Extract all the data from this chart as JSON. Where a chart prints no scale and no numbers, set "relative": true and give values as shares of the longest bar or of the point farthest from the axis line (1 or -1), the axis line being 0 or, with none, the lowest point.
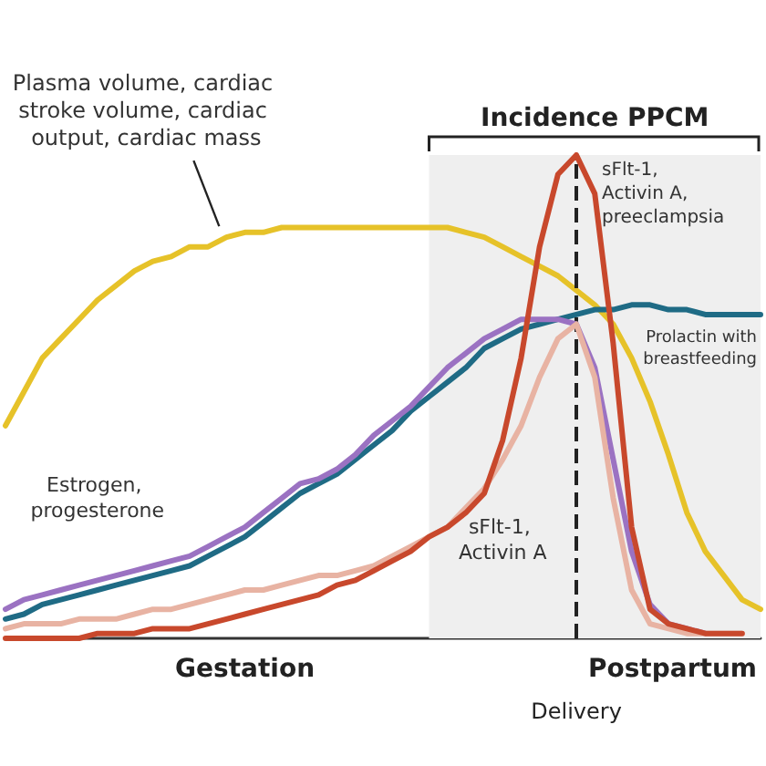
{
  "chart_data": {
    "type": "line",
    "relative": true,
    "legend": false,
    "grid": false,
    "marker": "none",
    "line_style": "solid",
    "categories": [
      null,
      null,
      null,
      null,
      null,
      null,
      null,
      null,
      null,
      null,
      null,
      null,
      null,
      null,
      null,
      null,
      null,
      null,
      null,
      null,
      null,
      null,
      null,
      null,
      null,
      null,
      null,
      null,
      null,
      null,
      null,
      null,
      null,
      null,
      null,
      null,
      null,
      null,
      null,
      null,
      null,
      null
    ],
    "series": [
      {
        "name": "Plasma volume, cardiac stroke volume, cardiac output, cardiac mass",
        "color": "#e6c229",
        "values": [
          0.44,
          0.51,
          0.58,
          0.62,
          0.66,
          0.7,
          0.73,
          0.76,
          0.78,
          0.79,
          0.81,
          0.81,
          0.83,
          0.84,
          0.84,
          0.85,
          0.85,
          0.85,
          0.85,
          0.85,
          0.85,
          0.85,
          0.85,
          0.85,
          0.85,
          0.84,
          0.83,
          0.81,
          0.79,
          0.77,
          0.75,
          0.72,
          0.69,
          0.65,
          0.58,
          0.49,
          0.38,
          0.26,
          0.18,
          0.13,
          0.08,
          0.06
        ]
      },
      {
        "name": "Prolactin with breastfeeding",
        "color": "#1f6b85",
        "values": [
          0.04,
          0.05,
          0.07,
          0.08,
          0.09,
          0.1,
          0.11,
          0.12,
          0.13,
          0.14,
          0.15,
          0.17,
          0.19,
          0.21,
          0.24,
          0.27,
          0.3,
          0.32,
          0.34,
          0.37,
          0.4,
          0.43,
          0.47,
          0.5,
          0.53,
          0.56,
          0.6,
          0.62,
          0.64,
          0.65,
          0.66,
          0.67,
          0.68,
          0.68,
          0.69,
          0.69,
          0.68,
          0.68,
          0.67,
          0.67,
          0.67,
          0.67
        ]
      },
      {
        "name": "Estrogen, progesterone",
        "color": "#9b72c2",
        "values": [
          0.06,
          0.08,
          0.09,
          0.1,
          0.11,
          0.12,
          0.13,
          0.14,
          0.15,
          0.16,
          0.17,
          0.19,
          0.21,
          0.23,
          0.26,
          0.29,
          0.32,
          0.33,
          0.35,
          0.38,
          0.42,
          0.45,
          0.48,
          0.52,
          0.56,
          0.59,
          0.62,
          0.64,
          0.66,
          0.66,
          0.66,
          0.65,
          0.56,
          0.37,
          0.18,
          0.07,
          0.03,
          0.02,
          0.01,
          null,
          null,
          null
        ]
      },
      {
        "name": "sFlt-1, Activin A",
        "color": "#e8b3a3",
        "values": [
          0.02,
          0.03,
          0.03,
          0.03,
          0.04,
          0.04,
          0.04,
          0.05,
          0.06,
          0.06,
          0.07,
          0.08,
          0.09,
          0.1,
          0.1,
          0.11,
          0.12,
          0.13,
          0.13,
          0.14,
          0.15,
          0.17,
          0.19,
          0.21,
          0.23,
          0.27,
          0.31,
          0.37,
          0.44,
          0.54,
          0.62,
          0.65,
          0.54,
          0.29,
          0.1,
          0.03,
          0.02,
          0.01,
          0.01,
          0.01,
          0.01,
          null
        ]
      },
      {
        "name": "sFlt-1, Activin A, preeclampsia",
        "color": "#c8482c",
        "values": [
          0.0,
          0.0,
          0.0,
          0.0,
          0.0,
          0.01,
          0.01,
          0.01,
          0.02,
          0.02,
          0.02,
          0.03,
          0.04,
          0.05,
          0.06,
          0.07,
          0.08,
          0.09,
          0.11,
          0.12,
          0.14,
          0.16,
          0.18,
          0.21,
          0.23,
          0.26,
          0.3,
          0.41,
          0.58,
          0.81,
          0.96,
          1,
          0.92,
          0.61,
          0.23,
          0.06,
          0.03,
          0.02,
          0.01,
          0.01,
          0.01,
          null
        ]
      }
    ],
    "annotations": [
      "Incidence PPCM",
      "Gestation",
      "Delivery",
      "Postpartum"
    ]
  }
}
